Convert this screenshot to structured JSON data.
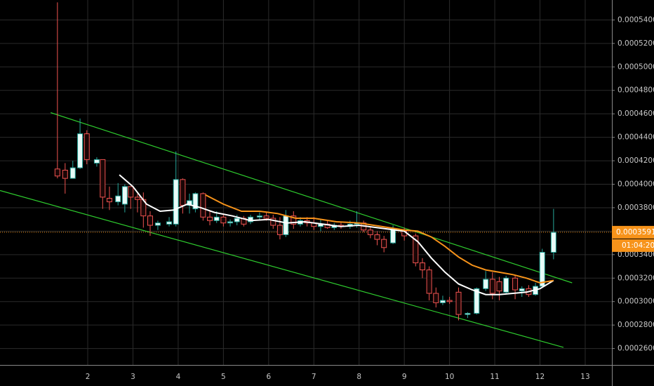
{
  "chart_data": {
    "type": "candlestick",
    "xlim": [
      0.06,
      13.59
    ],
    "ylim": [
      0.000246,
      0.000557
    ],
    "grid": true,
    "up_color": "#26a69a",
    "up_fill": "#e8fbf8",
    "down_color": "#ef5350",
    "down_fill": "#1a0606",
    "xticks": [
      2,
      3,
      4,
      5,
      6,
      7,
      8,
      9,
      10,
      11,
      12,
      13
    ],
    "yticks": [
      {
        "value": 0.00026,
        "label": "0.0002600"
      },
      {
        "value": 0.00028,
        "label": "0.0002800"
      },
      {
        "value": 0.0003,
        "label": "0.0003000"
      },
      {
        "value": 0.00032,
        "label": "0.0003200"
      },
      {
        "value": 0.00034,
        "label": "0.0003400"
      },
      {
        "value": 0.00036,
        "label": "0.0003600"
      },
      {
        "value": 0.00038,
        "label": "0.0003800"
      },
      {
        "value": 0.0004,
        "label": "0.0004000"
      },
      {
        "value": 0.00042,
        "label": "0.0004200"
      },
      {
        "value": 0.00044,
        "label": "0.0004400"
      },
      {
        "value": 0.00046,
        "label": "0.0004600"
      },
      {
        "value": 0.00048,
        "label": "0.0004800"
      },
      {
        "value": 0.0005,
        "label": "0.0005000"
      },
      {
        "value": 0.00052,
        "label": "0.0005200"
      },
      {
        "value": 0.00054,
        "label": "0.0005400"
      }
    ],
    "x": [
      1.33,
      1.5,
      1.67,
      1.83,
      1.98,
      2.2,
      2.33,
      2.48,
      2.67,
      2.82,
      2.95,
      3.1,
      3.23,
      3.38,
      3.55,
      3.8,
      3.95,
      4.1,
      4.25,
      4.38,
      4.55,
      4.7,
      4.85,
      5.0,
      5.15,
      5.3,
      5.45,
      5.6,
      5.8,
      5.95,
      6.1,
      6.25,
      6.38,
      6.55,
      6.7,
      6.85,
      7.0,
      7.15,
      7.3,
      7.45,
      7.6,
      7.8,
      7.95,
      8.1,
      8.25,
      8.4,
      8.55,
      8.75,
      9.0,
      9.25,
      9.4,
      9.55,
      9.7,
      9.85,
      10.0,
      10.2,
      10.4,
      10.6,
      10.8,
      10.95,
      11.1,
      11.25,
      11.45,
      11.6,
      11.75,
      11.9,
      12.05,
      12.3
    ],
    "open": [
      0.000413,
      0.000412,
      0.000405,
      0.000414,
      0.000443,
      0.000418,
      0.000421,
      0.000388,
      0.000385,
      0.000383,
      0.000398,
      0.000389,
      0.000387,
      0.000373,
      0.000365,
      0.000366,
      0.000366,
      0.000404,
      0.000382,
      0.000379,
      0.000392,
      0.000372,
      0.000369,
      0.000372,
      0.000367,
      0.000368,
      0.000371,
      0.000368,
      0.000372,
      0.000373,
      0.000371,
      0.000365,
      0.000357,
      0.000373,
      0.000366,
      0.000369,
      0.000367,
      0.000364,
      0.000366,
      0.000363,
      0.000365,
      0.000364,
      0.000366,
      0.000367,
      0.000361,
      0.000357,
      0.000353,
      0.00035,
      0.00036,
      0.000356,
      0.000333,
      0.000327,
      0.000307,
      0.000299,
      0.000301,
      0.000308,
      0.000289,
      0.00029,
      0.000311,
      0.000319,
      0.000317,
      0.000308,
      0.00032,
      0.000309,
      0.000311,
      0.000306,
      0.000313,
      0.000342
    ],
    "high": [
      0.000555,
      0.000418,
      0.00042,
      0.000456,
      0.000446,
      0.000423,
      0.000421,
      0.000398,
      0.000401,
      0.0004,
      0.000398,
      0.000392,
      0.000393,
      0.000377,
      0.000369,
      0.000372,
      0.000428,
      0.000405,
      0.000392,
      0.000393,
      0.000393,
      0.000377,
      0.000377,
      0.000375,
      0.00037,
      0.000374,
      0.000373,
      0.000374,
      0.000376,
      0.000376,
      0.000374,
      0.000372,
      0.000378,
      0.000377,
      0.000372,
      0.000372,
      0.000372,
      0.00037,
      0.000369,
      0.000367,
      0.000368,
      0.000369,
      0.000377,
      0.000369,
      0.000364,
      0.00036,
      0.000356,
      0.000365,
      0.000363,
      0.000358,
      0.000337,
      0.00033,
      0.000312,
      0.000305,
      0.000304,
      0.000312,
      0.000291,
      0.000312,
      0.000326,
      0.000325,
      0.000321,
      0.000322,
      0.000322,
      0.000313,
      0.000314,
      0.000316,
      0.000345,
      0.000379
    ],
    "low": [
      0.000405,
      0.000392,
      0.000405,
      0.000413,
      0.000417,
      0.000415,
      0.000379,
      0.000378,
      0.000382,
      0.000376,
      0.000379,
      0.000376,
      0.000363,
      0.000356,
      0.000361,
      0.000364,
      0.000364,
      0.000375,
      0.000375,
      0.000376,
      0.000369,
      0.000365,
      0.000367,
      0.000364,
      0.000364,
      0.000365,
      0.000364,
      0.000366,
      0.000369,
      0.000369,
      0.000362,
      0.000353,
      0.000355,
      0.000362,
      0.000364,
      0.000364,
      0.000361,
      0.00036,
      0.000362,
      0.000361,
      0.000362,
      0.000362,
      0.000363,
      0.000359,
      0.000354,
      0.000348,
      0.000342,
      0.000349,
      0.000352,
      0.00033,
      0.00032,
      0.000301,
      0.000295,
      0.000297,
      0.000298,
      0.000284,
      0.000286,
      0.000289,
      0.000309,
      0.000302,
      0.000301,
      0.000306,
      0.000302,
      0.000304,
      0.000304,
      0.000305,
      0.000313,
      0.000336
    ],
    "close": [
      0.000407,
      0.000405,
      0.000414,
      0.000443,
      0.000421,
      0.000421,
      0.000389,
      0.000385,
      0.00039,
      0.000398,
      0.000389,
      0.000387,
      0.000373,
      0.000365,
      0.000367,
      0.000368,
      0.000404,
      0.000382,
      0.000386,
      0.000392,
      0.000372,
      0.000369,
      0.000372,
      0.000367,
      0.000368,
      0.000371,
      0.000366,
      0.000372,
      0.000373,
      0.000371,
      0.000365,
      0.000357,
      0.000373,
      0.000366,
      0.000369,
      0.000367,
      0.000364,
      0.000366,
      0.000363,
      0.000365,
      0.000364,
      0.000366,
      0.000367,
      0.000361,
      0.000357,
      0.000353,
      0.000346,
      0.000362,
      0.000356,
      0.000333,
      0.000327,
      0.000307,
      0.000299,
      0.000301,
      0.0003,
      0.000289,
      0.00029,
      0.000311,
      0.000319,
      0.000307,
      0.000309,
      0.00032,
      0.00031,
      0.000311,
      0.000306,
      0.000313,
      0.000342,
      0.000359
    ],
    "lines": [
      {
        "color": "#ffffff",
        "x": [
          2.7,
          3.0,
          3.3,
          3.6,
          3.9,
          4.2,
          4.5,
          4.8,
          5.2,
          5.6,
          6.0,
          6.4,
          6.8,
          7.2,
          7.6,
          8.0,
          8.4,
          8.8,
          9.0,
          9.3,
          9.6,
          9.9,
          10.2,
          10.5,
          10.8,
          11.1,
          11.4,
          11.7,
          12.0,
          12.3
        ],
        "values": [
          0.000408,
          0.000398,
          0.000383,
          0.000377,
          0.000378,
          0.000383,
          0.00038,
          0.000376,
          0.000373,
          0.000369,
          0.00037,
          0.000367,
          0.000368,
          0.000366,
          0.000364,
          0.000365,
          0.000363,
          0.000361,
          0.00036,
          0.000351,
          0.000337,
          0.000325,
          0.000315,
          0.00031,
          0.000306,
          0.000306,
          0.000307,
          0.000308,
          0.000311,
          0.000318
        ]
      },
      {
        "color": "#f7931a",
        "x": [
          4.6,
          5.0,
          5.4,
          5.8,
          6.2,
          6.6,
          7.0,
          7.5,
          8.0,
          8.5,
          9.0,
          9.3,
          9.6,
          9.9,
          10.2,
          10.5,
          10.8,
          11.1,
          11.4,
          11.7,
          12.0,
          12.3
        ],
        "values": [
          0.000391,
          0.000383,
          0.000377,
          0.000377,
          0.000375,
          0.000371,
          0.000371,
          0.000368,
          0.000367,
          0.000364,
          0.000361,
          0.00036,
          0.000355,
          0.000347,
          0.000338,
          0.000331,
          0.000327,
          0.000325,
          0.000323,
          0.00032,
          0.000316,
          0.000318
        ]
      }
    ],
    "trendlines": [
      {
        "color": "#2ecc2e",
        "x": [
          1.18,
          12.71
        ],
        "values": [
          0.000461,
          0.000316
        ]
      },
      {
        "color": "#2ecc2e",
        "x": [
          0.06,
          12.52
        ],
        "values": [
          0.0003946,
          0.000261
        ]
      }
    ],
    "last_price": {
      "value": 0.0003591,
      "label": "0.0003591",
      "color": "#f7931a"
    },
    "countdown": "01:04:20"
  }
}
